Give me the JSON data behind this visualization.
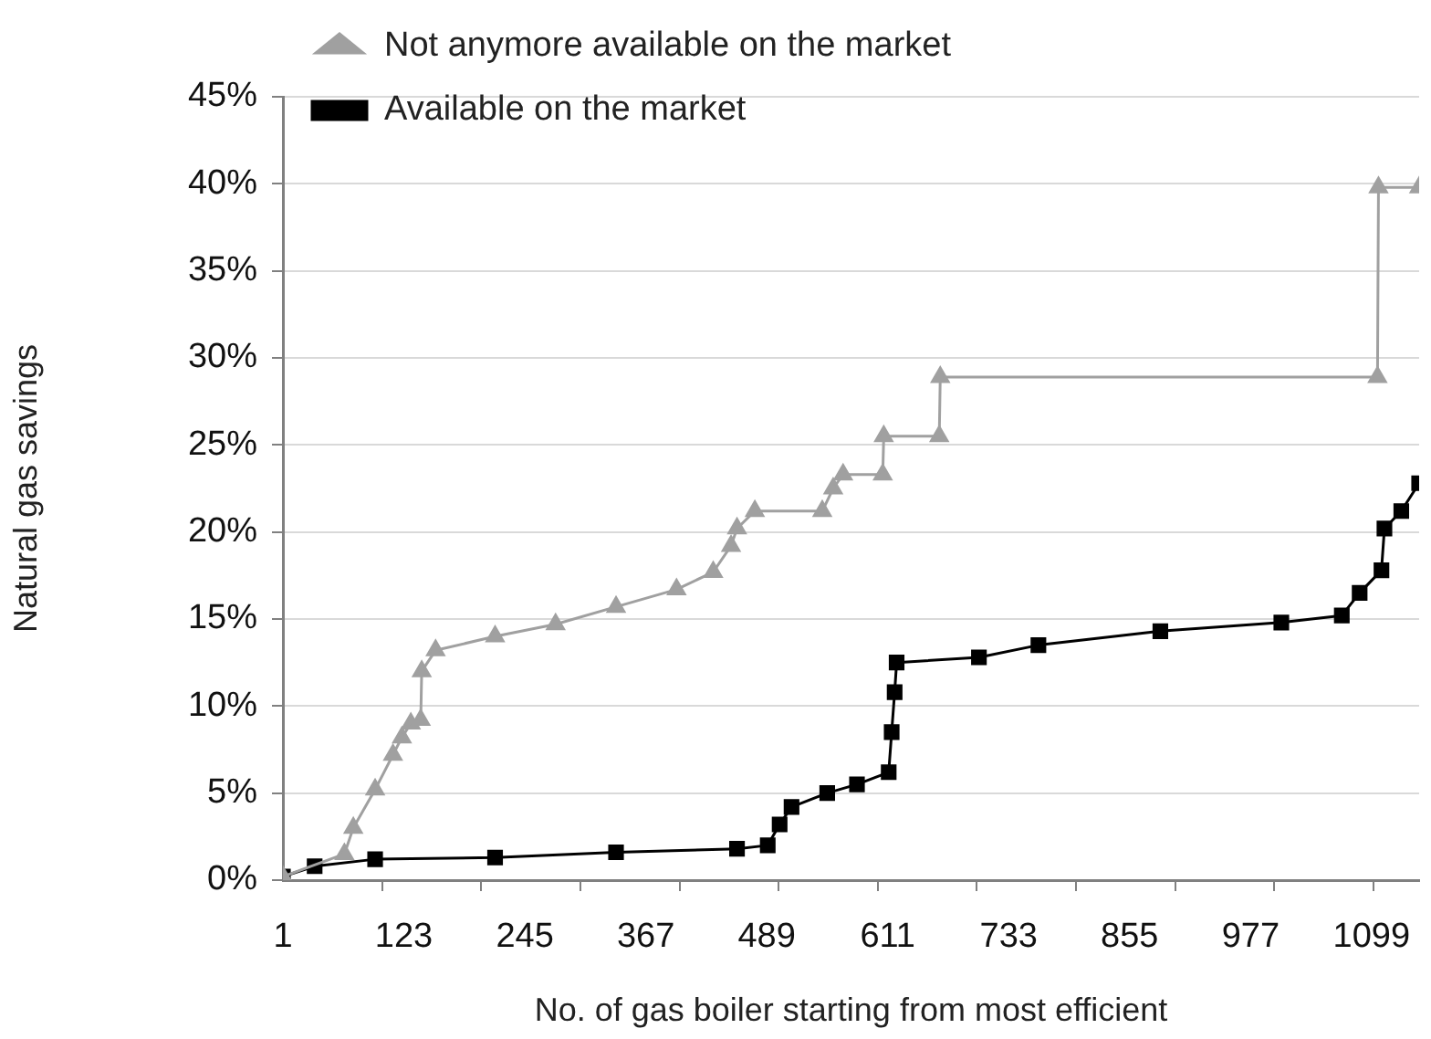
{
  "chart_data": {
    "type": "line",
    "xlabel": "No. of gas boiler starting from most efficient",
    "ylabel": "Natural gas savings",
    "xlim": [
      1,
      1147
    ],
    "xticks": [
      1,
      {
        "value": 101,
        "label": null
      },
      123,
      {
        "value": 201,
        "label": null
      },
      245,
      {
        "value": 301,
        "label": null
      },
      367,
      {
        "value": 401,
        "label": null
      },
      489,
      {
        "value": 501,
        "label": null
      },
      611,
      {
        "value": 601,
        "label": null
      },
      {
        "value": 701,
        "label": null
      },
      733,
      {
        "value": 801,
        "label": null
      },
      855,
      {
        "value": 901,
        "label": null
      },
      977,
      {
        "value": 1001,
        "label": null
      },
      1099,
      {
        "value": 1101,
        "label": null
      }
    ],
    "ylim": [
      0,
      45
    ],
    "yticks": [
      {
        "value": 0,
        "label": "0%"
      },
      {
        "value": 5,
        "label": "5%"
      },
      {
        "value": 10,
        "label": "10%"
      },
      {
        "value": 15,
        "label": "15%"
      },
      {
        "value": 20,
        "label": "20%"
      },
      {
        "value": 25,
        "label": "25%"
      },
      {
        "value": 30,
        "label": "30%"
      },
      {
        "value": 35,
        "label": "35%"
      },
      {
        "value": 40,
        "label": "40%"
      },
      {
        "value": 45,
        "label": "45%"
      }
    ],
    "grid": "y",
    "legend": "top left",
    "series": [
      {
        "name": "Not anymore available on the market",
        "color": "#a0a0a0",
        "marker": "triangle",
        "x": [
          1,
          63,
          72,
          94,
          112,
          121,
          130,
          140,
          141,
          155,
          215,
          276,
          337,
          398,
          435,
          453,
          459,
          477,
          545,
          556,
          566,
          606,
          607,
          663,
          664,
          1105,
          1106,
          1147
        ],
        "values": [
          0.2,
          1.5,
          3.0,
          5.2,
          7.2,
          8.2,
          9.0,
          9.2,
          12.0,
          13.2,
          14.0,
          14.7,
          15.7,
          16.7,
          17.7,
          19.2,
          20.2,
          21.2,
          21.2,
          22.5,
          23.3,
          23.3,
          25.5,
          25.5,
          28.9,
          28.9,
          39.8,
          39.8
        ]
      },
      {
        "name": "Available on the market",
        "color": "#000000",
        "marker": "square",
        "x": [
          1,
          33,
          94,
          215,
          337,
          459,
          490,
          502,
          514,
          550,
          580,
          612,
          615,
          618,
          620,
          703,
          763,
          886,
          1008,
          1069,
          1087,
          1109,
          1112,
          1129,
          1147
        ],
        "values": [
          0.2,
          0.8,
          1.2,
          1.3,
          1.6,
          1.8,
          2.0,
          3.2,
          4.2,
          5.0,
          5.5,
          6.2,
          8.5,
          10.8,
          12.5,
          12.8,
          13.5,
          14.3,
          14.8,
          15.2,
          16.5,
          17.8,
          20.2,
          21.2,
          22.8
        ]
      }
    ]
  }
}
